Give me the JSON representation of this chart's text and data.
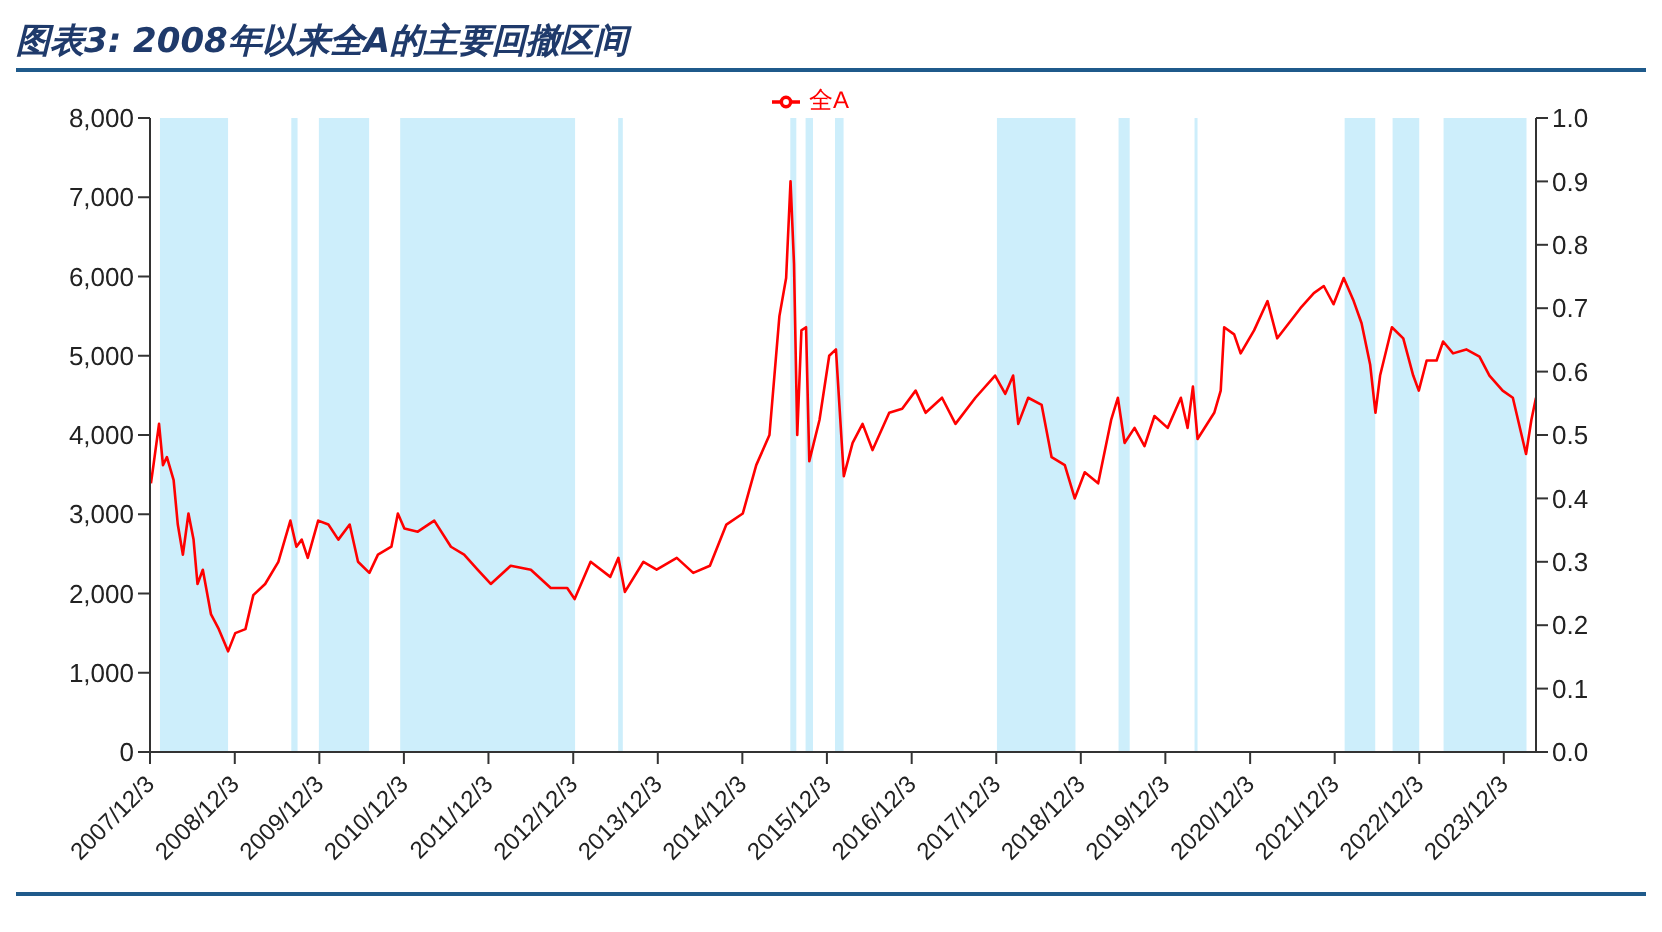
{
  "chart_data": {
    "type": "line",
    "title": "图表3: 2008年以来全A的主要回撤区间",
    "x": [
      "2007-12-07",
      "2007-12-18",
      "2008-01-11",
      "2008-01-28",
      "2008-02-14",
      "2008-03-14",
      "2008-04-01",
      "2008-04-23",
      "2008-05-17",
      "2008-06-08",
      "2008-06-25",
      "2008-07-18",
      "2008-08-22",
      "2008-09-25",
      "2008-11-04",
      "2008-12-05",
      "2009-01-18",
      "2009-02-21",
      "2009-04-13",
      "2009-06-09",
      "2009-07-31",
      "2009-08-26",
      "2009-09-18",
      "2009-10-14",
      "2009-11-28",
      "2010-01-11",
      "2010-02-23",
      "2010-04-13",
      "2010-05-19",
      "2010-07-07",
      "2010-08-13",
      "2010-10-10",
      "2010-11-07",
      "2010-12-05",
      "2011-02-01",
      "2011-04-13",
      "2011-06-24",
      "2011-08-20",
      "2011-10-17",
      "2011-12-13",
      "2012-03-08",
      "2012-06-03",
      "2012-08-28",
      "2012-11-07",
      "2012-12-09",
      "2013-02-16",
      "2013-05-12",
      "2013-06-16",
      "2013-07-14",
      "2013-10-02",
      "2013-11-28",
      "2014-02-23",
      "2014-05-05",
      "2014-07-16",
      "2014-09-25",
      "2014-12-05",
      "2015-02-01",
      "2015-03-30",
      "2015-05-12",
      "2015-06-10",
      "2015-06-29",
      "2015-07-14",
      "2015-07-28",
      "2015-08-15",
      "2015-09-04",
      "2015-09-18",
      "2015-11-01",
      "2015-12-13",
      "2016-01-11",
      "2016-02-14",
      "2016-03-23",
      "2016-05-05",
      "2016-06-17",
      "2016-08-28",
      "2016-10-23",
      "2016-12-20",
      "2017-02-01",
      "2017-04-13",
      "2017-06-10",
      "2017-09-04",
      "2017-11-28",
      "2018-01-11",
      "2018-02-14",
      "2018-03-08",
      "2018-04-20",
      "2018-06-17",
      "2018-07-30",
      "2018-09-25",
      "2018-11-07",
      "2018-12-20",
      "2019-02-16",
      "2019-04-13",
      "2019-05-12",
      "2019-06-10",
      "2019-07-23",
      "2019-09-04",
      "2019-10-17",
      "2019-12-13",
      "2020-02-08",
      "2020-03-08",
      "2020-03-31",
      "2020-04-20",
      "2020-07-01",
      "2020-07-29",
      "2020-08-13",
      "2020-09-25",
      "2020-10-23",
      "2020-12-20",
      "2021-02-16",
      "2021-03-30",
      "2021-07-08",
      "2021-09-04",
      "2021-10-17",
      "2021-11-28",
      "2022-01-11",
      "2022-02-23",
      "2022-03-29",
      "2022-05-05",
      "2022-05-28",
      "2022-06-17",
      "2022-08-07",
      "2022-09-25",
      "2022-11-07",
      "2022-12-01",
      "2023-01-04",
      "2023-02-16",
      "2023-03-16",
      "2023-04-28",
      "2023-06-24",
      "2023-08-20",
      "2023-10-02",
      "2023-11-28",
      "2024-01-11",
      "2024-03-08",
      "2024-03-31",
      "2024-04-20"
    ],
    "series": [
      {
        "name": "全A",
        "color": "#ff0000",
        "values": [
          3390,
          3620,
          4140,
          3620,
          3720,
          3430,
          2870,
          2490,
          3010,
          2680,
          2120,
          2300,
          1740,
          1550,
          1270,
          1500,
          1550,
          1980,
          2120,
          2400,
          2920,
          2590,
          2680,
          2450,
          2920,
          2870,
          2680,
          2870,
          2400,
          2260,
          2490,
          2590,
          3010,
          2820,
          2780,
          2920,
          2590,
          2490,
          2300,
          2120,
          2350,
          2300,
          2070,
          2070,
          1930,
          2400,
          2210,
          2450,
          2020,
          2400,
          2300,
          2450,
          2260,
          2350,
          2870,
          3010,
          3620,
          4000,
          5500,
          5980,
          7200,
          6160,
          4000,
          5320,
          5360,
          3670,
          4190,
          5000,
          5080,
          3480,
          3900,
          4140,
          3810,
          4280,
          4330,
          4560,
          4280,
          4470,
          4140,
          4470,
          4750,
          4520,
          4750,
          4140,
          4470,
          4380,
          3720,
          3620,
          3200,
          3530,
          3390,
          4190,
          4470,
          3900,
          4090,
          3860,
          4240,
          4090,
          4470,
          4090,
          4610,
          3950,
          4280,
          4560,
          5360,
          5270,
          5030,
          5320,
          5690,
          5220,
          5600,
          5790,
          5880,
          5650,
          5980,
          5690,
          5410,
          4890,
          4280,
          4750,
          5360,
          5220,
          4750,
          4560,
          4940,
          4940,
          5180,
          5030,
          5080,
          4990,
          4750,
          4560,
          4470,
          3760,
          4190,
          4470
        ]
      }
    ],
    "xlim": [
      "2007-12-03",
      "2024-04-20"
    ],
    "xticks": [
      {
        "value": "2007-12-03",
        "label": "2007/12/3"
      },
      {
        "value": "2008-12-03",
        "label": "2008/12/3"
      },
      {
        "value": "2009-12-03",
        "label": "2009/12/3"
      },
      {
        "value": "2010-12-03",
        "label": "2010/12/3"
      },
      {
        "value": "2011-12-03",
        "label": "2011/12/3"
      },
      {
        "value": "2012-12-03",
        "label": "2012/12/3"
      },
      {
        "value": "2013-12-03",
        "label": "2013/12/3"
      },
      {
        "value": "2014-12-03",
        "label": "2014/12/3"
      },
      {
        "value": "2015-12-03",
        "label": "2015/12/3"
      },
      {
        "value": "2016-12-03",
        "label": "2016/12/3"
      },
      {
        "value": "2017-12-03",
        "label": "2017/12/3"
      },
      {
        "value": "2018-12-03",
        "label": "2018/12/3"
      },
      {
        "value": "2019-12-03",
        "label": "2019/12/3"
      },
      {
        "value": "2020-12-03",
        "label": "2020/12/3"
      },
      {
        "value": "2021-12-03",
        "label": "2021/12/3"
      },
      {
        "value": "2022-12-03",
        "label": "2022/12/3"
      },
      {
        "value": "2023-12-03",
        "label": "2023/12/3"
      }
    ],
    "ylim": [
      0,
      8000
    ],
    "yticks": [
      0,
      {
        "value": 1000,
        "label": "1,000"
      },
      {
        "value": 2000,
        "label": "2,000"
      },
      {
        "value": 3000,
        "label": "3,000"
      },
      {
        "value": 4000,
        "label": "4,000"
      },
      {
        "value": 5000,
        "label": "5,000"
      },
      {
        "value": 6000,
        "label": "6,000"
      },
      {
        "value": 7000,
        "label": "7,000"
      },
      {
        "value": 8000,
        "label": "8,000"
      }
    ],
    "y2lim": [
      0,
      1
    ],
    "y2ticks": [
      {
        "value": 0,
        "label": "0.0"
      },
      {
        "value": 0.1,
        "label": "0.1"
      },
      {
        "value": 0.2,
        "label": "0.2"
      },
      {
        "value": 0.3,
        "label": "0.3"
      },
      {
        "value": 0.4,
        "label": "0.4"
      },
      {
        "value": 0.5,
        "label": "0.5"
      },
      {
        "value": 0.6,
        "label": "0.6"
      },
      {
        "value": 0.7,
        "label": "0.7"
      },
      {
        "value": 0.8,
        "label": "0.8"
      },
      {
        "value": 0.9,
        "label": "0.9"
      },
      {
        "value": 1,
        "label": "1.0"
      }
    ],
    "bands": [
      {
        "axis": "x",
        "from": "2008-01-15",
        "to": "2008-11-04",
        "color": "#cdeefb"
      },
      {
        "axis": "x",
        "from": "2009-08-04",
        "to": "2009-08-31",
        "color": "#cdeefb"
      },
      {
        "axis": "x",
        "from": "2009-12-01",
        "to": "2010-07-06",
        "color": "#cdeefb"
      },
      {
        "axis": "x",
        "from": "2010-11-17",
        "to": "2012-12-11",
        "color": "#cdeefb"
      },
      {
        "axis": "x",
        "from": "2013-06-15",
        "to": "2013-07-05",
        "color": "#cdeefb"
      },
      {
        "axis": "x",
        "from": "2015-06-28",
        "to": "2015-07-24",
        "color": "#cdeefb"
      },
      {
        "axis": "x",
        "from": "2015-09-02",
        "to": "2015-10-04",
        "color": "#cdeefb"
      },
      {
        "axis": "x",
        "from": "2016-01-07",
        "to": "2016-02-13",
        "color": "#cdeefb"
      },
      {
        "axis": "x",
        "from": "2017-12-06",
        "to": "2018-11-10",
        "color": "#cdeefb"
      },
      {
        "axis": "x",
        "from": "2019-05-15",
        "to": "2019-07-02",
        "color": "#cdeefb"
      },
      {
        "axis": "x",
        "from": "2020-04-07",
        "to": "2020-04-20",
        "color": "#cdeefb"
      },
      {
        "axis": "x",
        "from": "2022-01-15",
        "to": "2022-05-27",
        "color": "#cdeefb"
      },
      {
        "axis": "x",
        "from": "2022-08-10",
        "to": "2022-12-03",
        "color": "#cdeefb"
      },
      {
        "axis": "x",
        "from": "2023-03-18",
        "to": "2024-03-10",
        "color": "#cdeefb"
      }
    ],
    "grid": false,
    "legend": "top",
    "marker": "none",
    "line_style": "solid"
  }
}
